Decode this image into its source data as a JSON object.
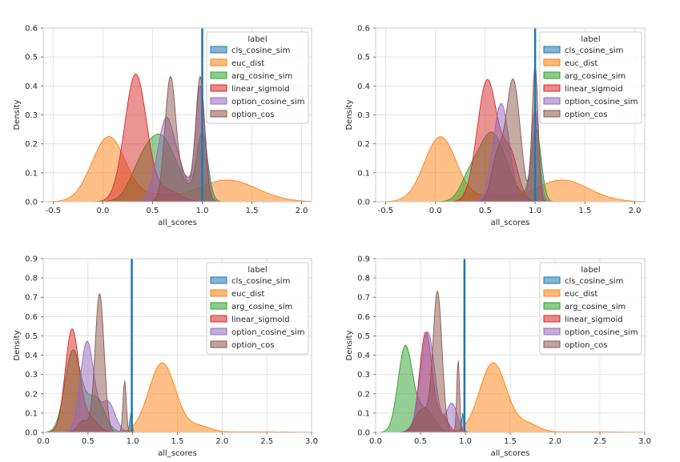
{
  "chart_data": [
    {
      "type": "area",
      "title": "",
      "xlabel": "all_scores",
      "ylabel": "Density",
      "xlim": [
        -0.6,
        2.1
      ],
      "ylim": [
        0,
        0.6
      ],
      "xticks": [
        -0.5,
        0.0,
        0.5,
        1.0,
        1.5,
        2.0
      ],
      "xtick_labels": [
        "-0.5",
        "0.0",
        "0.5",
        "1.0",
        "1.5",
        "2.0"
      ],
      "yticks": [
        0.0,
        0.1,
        0.2,
        0.3,
        0.4,
        0.5,
        0.6
      ],
      "ytick_labels": [
        "0.0",
        "0.1",
        "0.2",
        "0.3",
        "0.4",
        "0.5",
        "0.6"
      ],
      "vline_x": 1.0,
      "legend_title": "label",
      "legend_position": "upper-right",
      "series": [
        {
          "name": "cls_cosine_sim",
          "color": "#1f77b4",
          "components": []
        },
        {
          "name": "euc_dist",
          "color": "#ff7f0e",
          "components": [
            {
              "mu": 0.06,
              "sigma": 0.17,
              "h": 0.225
            },
            {
              "mu": 1.25,
              "sigma": 0.3,
              "h": 0.075
            },
            {
              "mu": 0.55,
              "sigma": 0.15,
              "h": 0.02
            }
          ]
        },
        {
          "name": "arg_cosine_sim",
          "color": "#2ca02c",
          "components": [
            {
              "mu": 0.57,
              "sigma": 0.17,
              "h": 0.23
            },
            {
              "mu": 1.0,
              "sigma": 0.055,
              "h": 0.23
            },
            {
              "mu": 0.35,
              "sigma": 0.1,
              "h": 0.04
            }
          ]
        },
        {
          "name": "linear_sigmoid",
          "color": "#d62728",
          "components": [
            {
              "mu": 0.33,
              "sigma": 0.11,
              "h": 0.44
            },
            {
              "mu": 0.65,
              "sigma": 0.12,
              "h": 0.04
            }
          ]
        },
        {
          "name": "option_cosine_sim",
          "color": "#9467bd",
          "components": [
            {
              "mu": 0.64,
              "sigma": 0.09,
              "h": 0.29
            },
            {
              "mu": 0.98,
              "sigma": 0.05,
              "h": 0.4
            },
            {
              "mu": 0.8,
              "sigma": 0.06,
              "h": 0.06
            }
          ]
        },
        {
          "name": "option_cos",
          "color": "#8c564b",
          "components": [
            {
              "mu": 0.68,
              "sigma": 0.055,
              "h": 0.43
            },
            {
              "mu": 0.98,
              "sigma": 0.045,
              "h": 0.43
            },
            {
              "mu": 0.83,
              "sigma": 0.06,
              "h": 0.08
            }
          ]
        }
      ]
    },
    {
      "type": "area",
      "title": "",
      "xlabel": "all_scores",
      "ylabel": "Density",
      "xlim": [
        -0.6,
        2.1
      ],
      "ylim": [
        0,
        0.6
      ],
      "xticks": [
        -0.5,
        0.0,
        0.5,
        1.0,
        1.5,
        2.0
      ],
      "xtick_labels": [
        "-0.5",
        "0.0",
        "0.5",
        "1.0",
        "1.5",
        "2.0"
      ],
      "yticks": [
        0.0,
        0.1,
        0.2,
        0.3,
        0.4,
        0.5,
        0.6
      ],
      "ytick_labels": [
        "0.0",
        "0.1",
        "0.2",
        "0.3",
        "0.4",
        "0.5",
        "0.6"
      ],
      "vline_x": 1.0,
      "legend_title": "label",
      "legend_position": "upper-right",
      "series": [
        {
          "name": "cls_cosine_sim",
          "color": "#1f77b4",
          "components": []
        },
        {
          "name": "euc_dist",
          "color": "#ff7f0e",
          "components": [
            {
              "mu": 0.05,
              "sigma": 0.16,
              "h": 0.225
            },
            {
              "mu": 1.27,
              "sigma": 0.27,
              "h": 0.075
            },
            {
              "mu": 0.55,
              "sigma": 0.15,
              "h": 0.02
            }
          ]
        },
        {
          "name": "arg_cosine_sim",
          "color": "#2ca02c",
          "components": [
            {
              "mu": 0.56,
              "sigma": 0.15,
              "h": 0.24
            },
            {
              "mu": 1.01,
              "sigma": 0.05,
              "h": 0.25
            },
            {
              "mu": 0.32,
              "sigma": 0.08,
              "h": 0.04
            }
          ]
        },
        {
          "name": "linear_sigmoid",
          "color": "#d62728",
          "components": [
            {
              "mu": 0.52,
              "sigma": 0.1,
              "h": 0.42
            },
            {
              "mu": 0.75,
              "sigma": 0.08,
              "h": 0.16
            }
          ]
        },
        {
          "name": "option_cosine_sim",
          "color": "#9467bd",
          "components": [
            {
              "mu": 0.66,
              "sigma": 0.08,
              "h": 0.34
            },
            {
              "mu": 1.0,
              "sigma": 0.04,
              "h": 0.32
            }
          ]
        },
        {
          "name": "option_cos",
          "color": "#8c564b",
          "components": [
            {
              "mu": 0.78,
              "sigma": 0.07,
              "h": 0.42
            },
            {
              "mu": 1.0,
              "sigma": 0.03,
              "h": 0.47
            },
            {
              "mu": 0.62,
              "sigma": 0.06,
              "h": 0.15
            }
          ]
        }
      ]
    },
    {
      "type": "area",
      "title": "",
      "xlabel": "all_scores",
      "ylabel": "Density",
      "xlim": [
        0.0,
        3.0
      ],
      "ylim": [
        0,
        0.9
      ],
      "xticks": [
        0.0,
        0.5,
        1.0,
        1.5,
        2.0,
        2.5,
        3.0
      ],
      "xtick_labels": [
        "0.0",
        "0.5",
        "1.0",
        "1.5",
        "2.0",
        "2.5",
        "3.0"
      ],
      "yticks": [
        0.0,
        0.1,
        0.2,
        0.3,
        0.4,
        0.5,
        0.6,
        0.7,
        0.8,
        0.9
      ],
      "ytick_labels": [
        "0.0",
        "0.1",
        "0.2",
        "0.3",
        "0.4",
        "0.5",
        "0.6",
        "0.7",
        "0.8",
        "0.9"
      ],
      "vline_x": 0.99,
      "legend_title": "label",
      "legend_position": "upper-right",
      "series": [
        {
          "name": "cls_cosine_sim",
          "color": "#1f77b4",
          "components": [
            {
              "mu": 0.98,
              "sigma": 0.012,
              "h": 0.1
            }
          ]
        },
        {
          "name": "euc_dist",
          "color": "#ff7f0e",
          "components": [
            {
              "mu": 1.33,
              "sigma": 0.15,
              "h": 0.36
            },
            {
              "mu": 1.75,
              "sigma": 0.12,
              "h": 0.03
            },
            {
              "mu": 2.3,
              "sigma": 0.5,
              "h": 0.003
            }
          ]
        },
        {
          "name": "arg_cosine_sim",
          "color": "#2ca02c",
          "components": [
            {
              "mu": 0.33,
              "sigma": 0.09,
              "h": 0.42
            },
            {
              "mu": 0.58,
              "sigma": 0.1,
              "h": 0.18
            }
          ]
        },
        {
          "name": "linear_sigmoid",
          "color": "#d62728",
          "components": [
            {
              "mu": 0.32,
              "sigma": 0.075,
              "h": 0.52
            },
            {
              "mu": 0.5,
              "sigma": 0.1,
              "h": 0.08
            }
          ]
        },
        {
          "name": "option_cosine_sim",
          "color": "#9467bd",
          "components": [
            {
              "mu": 0.49,
              "sigma": 0.075,
              "h": 0.47
            },
            {
              "mu": 0.72,
              "sigma": 0.08,
              "h": 0.16
            }
          ]
        },
        {
          "name": "option_cos",
          "color": "#8c564b",
          "components": [
            {
              "mu": 0.63,
              "sigma": 0.05,
              "h": 0.72
            },
            {
              "mu": 0.91,
              "sigma": 0.018,
              "h": 0.27
            },
            {
              "mu": 0.45,
              "sigma": 0.06,
              "h": 0.06
            }
          ]
        }
      ]
    },
    {
      "type": "area",
      "title": "",
      "xlabel": "all_scores",
      "ylabel": "Density",
      "xlim": [
        0.0,
        3.0
      ],
      "ylim": [
        0,
        0.9
      ],
      "xticks": [
        0.0,
        0.5,
        1.0,
        1.5,
        2.0,
        2.5,
        3.0
      ],
      "xtick_labels": [
        "0.0",
        "0.5",
        "1.0",
        "1.5",
        "2.0",
        "2.5",
        "3.0"
      ],
      "yticks": [
        0.0,
        0.1,
        0.2,
        0.3,
        0.4,
        0.5,
        0.6,
        0.7,
        0.8,
        0.9
      ],
      "ytick_labels": [
        "0.0",
        "0.1",
        "0.2",
        "0.3",
        "0.4",
        "0.5",
        "0.6",
        "0.7",
        "0.8",
        "0.9"
      ],
      "vline_x": 0.99,
      "legend_title": "label",
      "legend_position": "upper-right",
      "series": [
        {
          "name": "cls_cosine_sim",
          "color": "#1f77b4",
          "components": [
            {
              "mu": 0.97,
              "sigma": 0.012,
              "h": 0.1
            }
          ]
        },
        {
          "name": "euc_dist",
          "color": "#ff7f0e",
          "components": [
            {
              "mu": 1.31,
              "sigma": 0.15,
              "h": 0.36
            },
            {
              "mu": 1.7,
              "sigma": 0.12,
              "h": 0.04
            },
            {
              "mu": 2.3,
              "sigma": 0.5,
              "h": 0.003
            }
          ]
        },
        {
          "name": "arg_cosine_sim",
          "color": "#2ca02c",
          "components": [
            {
              "mu": 0.33,
              "sigma": 0.08,
              "h": 0.44
            },
            {
              "mu": 0.55,
              "sigma": 0.1,
              "h": 0.12
            }
          ]
        },
        {
          "name": "linear_sigmoid",
          "color": "#d62728",
          "components": [
            {
              "mu": 0.56,
              "sigma": 0.07,
              "h": 0.52
            },
            {
              "mu": 0.75,
              "sigma": 0.06,
              "h": 0.08
            }
          ]
        },
        {
          "name": "option_cosine_sim",
          "color": "#9467bd",
          "components": [
            {
              "mu": 0.58,
              "sigma": 0.08,
              "h": 0.52
            },
            {
              "mu": 0.85,
              "sigma": 0.06,
              "h": 0.15
            }
          ]
        },
        {
          "name": "option_cos",
          "color": "#8c564b",
          "components": [
            {
              "mu": 0.52,
              "sigma": 0.08,
              "h": 0.12
            },
            {
              "mu": 0.69,
              "sigma": 0.05,
              "h": 0.72
            },
            {
              "mu": 0.92,
              "sigma": 0.015,
              "h": 0.38
            }
          ]
        }
      ]
    }
  ]
}
